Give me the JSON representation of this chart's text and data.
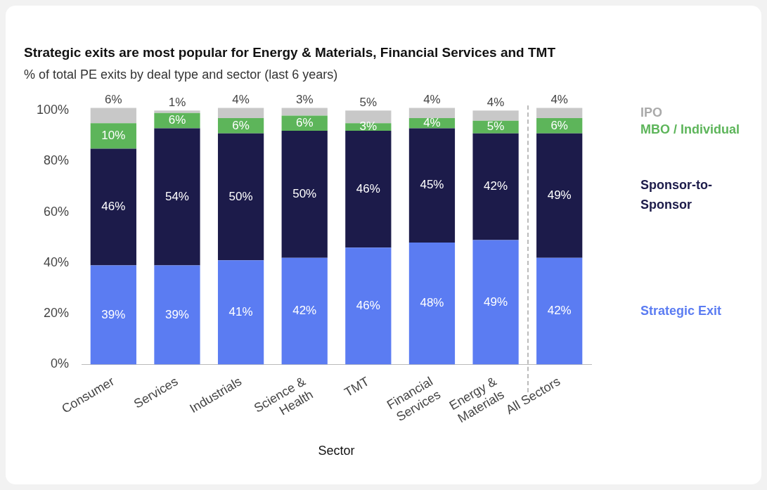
{
  "chart_data": {
    "type": "bar",
    "stacked": true,
    "title": "Strategic exits are most popular for Energy & Materials, Financial Services and TMT",
    "subtitle": "% of total PE exits by deal type and sector (last 6 years)",
    "xlabel": "Sector",
    "categories": [
      "Consumer",
      "Services",
      "Industrials",
      "Science & Health",
      "TMT",
      "Financial Services",
      "Energy & Materials",
      "All Sectors"
    ],
    "series": [
      {
        "name": "Strategic Exit",
        "color": "#5b7cf2",
        "values": [
          39,
          39,
          41,
          42,
          46,
          48,
          49,
          42
        ],
        "value_labels": [
          "39%",
          "39%",
          "41%",
          "42%",
          "46%",
          "48%",
          "49%",
          "42%"
        ]
      },
      {
        "name": "Sponsor-to-Sponsor",
        "color": "#1c1b4a",
        "values": [
          46,
          54,
          50,
          50,
          46,
          45,
          42,
          49
        ],
        "value_labels": [
          "46%",
          "54%",
          "50%",
          "50%",
          "46%",
          "45%",
          "42%",
          "49%"
        ]
      },
      {
        "name": "MBO / Individual",
        "color": "#5db55a",
        "values": [
          10,
          6,
          6,
          6,
          3,
          4,
          5,
          6
        ],
        "value_labels": [
          "10%",
          "6%",
          "6%",
          "6%",
          "3%",
          "4%",
          "5%",
          "6%"
        ]
      },
      {
        "name": "IPO",
        "color": "#c8c8c8",
        "values": [
          6,
          1,
          4,
          3,
          5,
          4,
          4,
          4
        ],
        "value_labels": [
          "6%",
          "1%",
          "4%",
          "3%",
          "5%",
          "4%",
          "4%",
          "4%"
        ]
      }
    ],
    "ylim": [
      0,
      102
    ],
    "yticks": [
      {
        "value": 0,
        "label": "0%"
      },
      {
        "value": 20,
        "label": "20%"
      },
      {
        "value": 40,
        "label": "40%"
      },
      {
        "value": 60,
        "label": "60%"
      },
      {
        "value": 80,
        "label": "80%"
      },
      {
        "value": 100,
        "label": "100%"
      }
    ],
    "grid": false,
    "legend": "right"
  }
}
